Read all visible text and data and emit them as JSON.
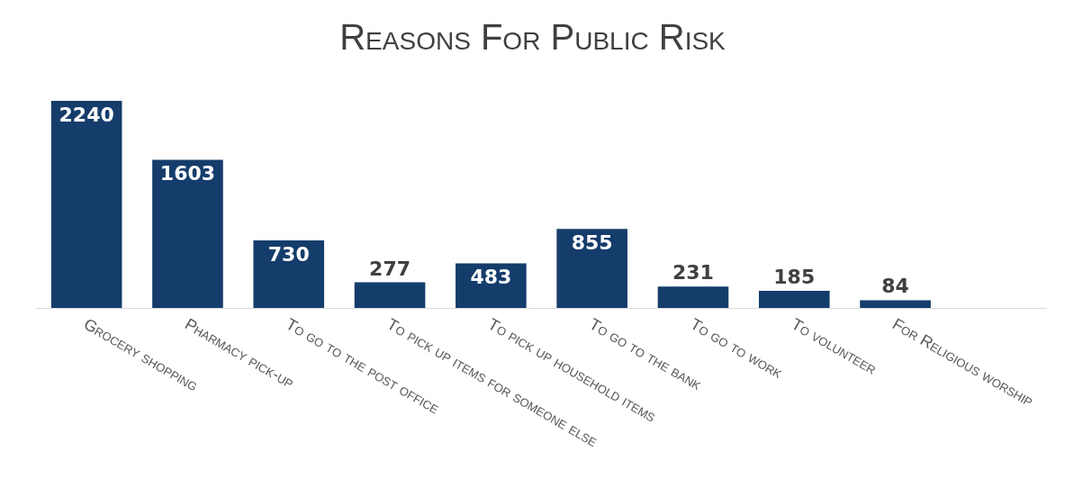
{
  "chart_data": {
    "type": "bar",
    "title": "Reasons For Public Risk",
    "categories": [
      "Grocery shopping",
      "Pharmacy pick-up",
      "To go to the post office",
      "To pick up items for someone else",
      "To pick up household items",
      "To go to the bank",
      "To go to work",
      "To volunteer",
      "For Religious worship"
    ],
    "values": [
      2240,
      1603,
      730,
      277,
      483,
      855,
      231,
      185,
      84
    ],
    "color": "#153d6b",
    "data_labels": true
  }
}
